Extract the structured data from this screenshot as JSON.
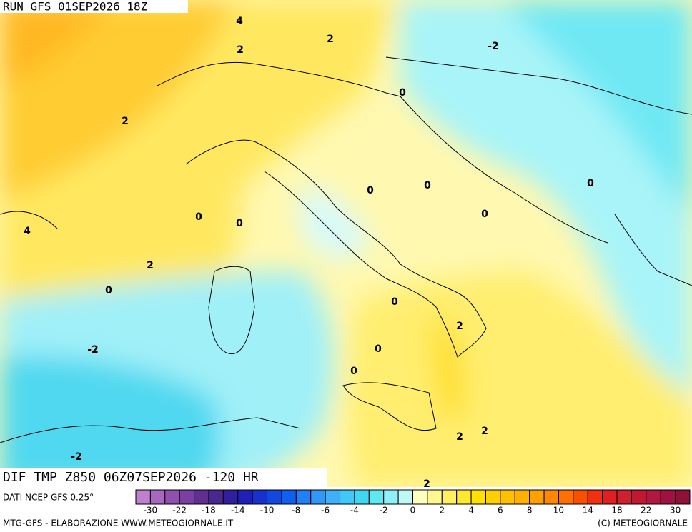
{
  "header": {
    "title": "RUN GFS 01SEP2026 18Z"
  },
  "map": {
    "title": "DIF TMP Z850 06Z07SEP2026 -120 HR",
    "source": "DATI NCEP GFS 0.25°",
    "contour_labels": [
      4,
      2,
      2,
      -2,
      0,
      2,
      0,
      0,
      0,
      0,
      0,
      0,
      4,
      2,
      0,
      0,
      2,
      0,
      -2,
      0,
      2,
      2,
      -2,
      2
    ]
  },
  "colorbar": {
    "colors": [
      "#c080d0",
      "#a868c0",
      "#9050b0",
      "#7840a0",
      "#603090",
      "#482890",
      "#3020a0",
      "#2020b8",
      "#1830d0",
      "#1048e0",
      "#1060f0",
      "#2080f8",
      "#3098f8",
      "#40b0f8",
      "#40c8f8",
      "#40d8f0",
      "#60e8f0",
      "#90f0f8",
      "#c0f8f8",
      "#ffffc0",
      "#fff890",
      "#fff060",
      "#ffe830",
      "#ffe000",
      "#ffd000",
      "#ffc000",
      "#ffb000",
      "#ffa000",
      "#ff8800",
      "#ff7000",
      "#f85000",
      "#f03010",
      "#e02020",
      "#d02030",
      "#c01830",
      "#b01840",
      "#a01040",
      "#901038"
    ],
    "labels": [
      -30,
      -22,
      -18,
      -14,
      -10,
      -8,
      -6,
      -4,
      -2,
      0,
      2,
      4,
      6,
      8,
      10,
      14,
      18,
      22,
      30
    ]
  },
  "footer": {
    "left": "MTG-GFS - ELABORAZIONE WWW.METEOGIORNALE.IT",
    "right": "(C) METEOGIORNALE"
  }
}
